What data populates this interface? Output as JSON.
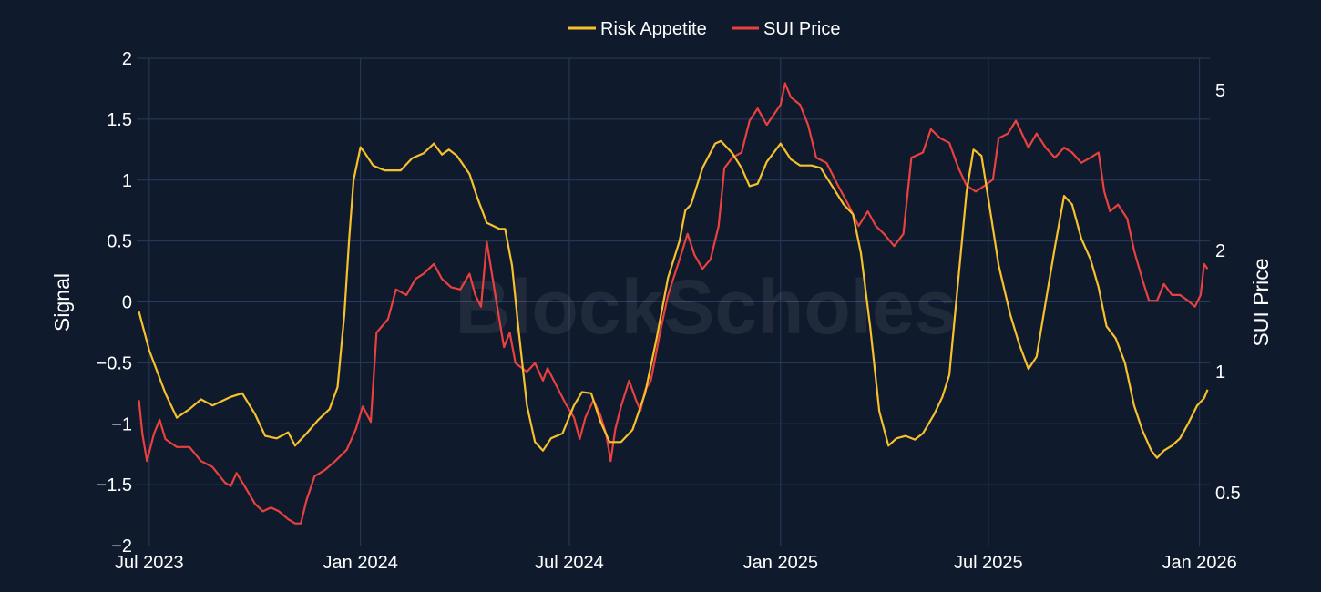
{
  "chart_data": {
    "type": "line",
    "watermark": "BlockScholes",
    "colors": {
      "background": "#0f1a2c",
      "grid": "#2a3a5c",
      "risk": "#f7c12d",
      "price": "#e8413f"
    },
    "legend_position": "top-center",
    "grid": true,
    "xaxis": {
      "range": [
        "2023-06-20",
        "2026-01-10"
      ],
      "ticks": [
        {
          "date": "2023-07-01",
          "label": "Jul 2023"
        },
        {
          "date": "2024-01-01",
          "label": "Jan 2024"
        },
        {
          "date": "2024-07-01",
          "label": "Jul 2024"
        },
        {
          "date": "2025-01-01",
          "label": "Jan 2025"
        },
        {
          "date": "2025-07-01",
          "label": "Jul 2025"
        },
        {
          "date": "2026-01-01",
          "label": "Jan 2026"
        }
      ]
    },
    "yaxis_left": {
      "title": "Signal",
      "range": [
        -2,
        2
      ],
      "ticks": [
        {
          "v": 2,
          "label": "2"
        },
        {
          "v": 1.5,
          "label": "1.5"
        },
        {
          "v": 1,
          "label": "1"
        },
        {
          "v": 0.5,
          "label": "0.5"
        },
        {
          "v": 0,
          "label": "0"
        },
        {
          "v": -0.5,
          "label": "−0.5"
        },
        {
          "v": -1,
          "label": "−1"
        },
        {
          "v": -1.5,
          "label": "−1.5"
        },
        {
          "v": -2,
          "label": "−2"
        }
      ]
    },
    "yaxis_right": {
      "title": "SUI Price",
      "scale": "log",
      "range": [
        0.37,
        6.0
      ],
      "ticks": [
        {
          "v": 5,
          "label": "5"
        },
        {
          "v": 2,
          "label": "2"
        },
        {
          "v": 1,
          "label": "1"
        },
        {
          "v": 0.5,
          "label": "0.5"
        }
      ]
    },
    "series": [
      {
        "name": "Risk Appetite",
        "axis": "left",
        "points": [
          [
            "2023-06-22",
            -0.08
          ],
          [
            "2023-07-01",
            -0.4
          ],
          [
            "2023-07-15",
            -0.75
          ],
          [
            "2023-07-25",
            -0.95
          ],
          [
            "2023-08-05",
            -0.88
          ],
          [
            "2023-08-15",
            -0.8
          ],
          [
            "2023-08-25",
            -0.85
          ],
          [
            "2023-09-10",
            -0.78
          ],
          [
            "2023-09-20",
            -0.75
          ],
          [
            "2023-10-01",
            -0.92
          ],
          [
            "2023-10-10",
            -1.1
          ],
          [
            "2023-10-20",
            -1.12
          ],
          [
            "2023-10-30",
            -1.07
          ],
          [
            "2023-11-05",
            -1.18
          ],
          [
            "2023-11-15",
            -1.08
          ],
          [
            "2023-11-25",
            -0.97
          ],
          [
            "2023-12-05",
            -0.88
          ],
          [
            "2023-12-12",
            -0.7
          ],
          [
            "2023-12-18",
            -0.1
          ],
          [
            "2023-12-22",
            0.5
          ],
          [
            "2023-12-26",
            1.0
          ],
          [
            "2024-01-01",
            1.27
          ],
          [
            "2024-01-05",
            1.22
          ],
          [
            "2024-01-12",
            1.12
          ],
          [
            "2024-01-22",
            1.08
          ],
          [
            "2024-02-05",
            1.08
          ],
          [
            "2024-02-15",
            1.18
          ],
          [
            "2024-02-25",
            1.22
          ],
          [
            "2024-03-05",
            1.3
          ],
          [
            "2024-03-12",
            1.21
          ],
          [
            "2024-03-18",
            1.25
          ],
          [
            "2024-03-25",
            1.2
          ],
          [
            "2024-04-05",
            1.05
          ],
          [
            "2024-04-12",
            0.85
          ],
          [
            "2024-04-20",
            0.65
          ],
          [
            "2024-05-01",
            0.6
          ],
          [
            "2024-05-06",
            0.6
          ],
          [
            "2024-05-12",
            0.3
          ],
          [
            "2024-05-18",
            -0.25
          ],
          [
            "2024-05-25",
            -0.85
          ],
          [
            "2024-06-01",
            -1.15
          ],
          [
            "2024-06-08",
            -1.22
          ],
          [
            "2024-06-15",
            -1.12
          ],
          [
            "2024-06-25",
            -1.08
          ],
          [
            "2024-07-05",
            -0.85
          ],
          [
            "2024-07-12",
            -0.74
          ],
          [
            "2024-07-20",
            -0.75
          ],
          [
            "2024-07-28",
            -0.98
          ],
          [
            "2024-08-05",
            -1.15
          ],
          [
            "2024-08-15",
            -1.15
          ],
          [
            "2024-08-25",
            -1.05
          ],
          [
            "2024-09-05",
            -0.75
          ],
          [
            "2024-09-15",
            -0.3
          ],
          [
            "2024-09-25",
            0.2
          ],
          [
            "2024-10-05",
            0.5
          ],
          [
            "2024-10-10",
            0.75
          ],
          [
            "2024-10-15",
            0.8
          ],
          [
            "2024-10-25",
            1.1
          ],
          [
            "2024-11-05",
            1.3
          ],
          [
            "2024-11-10",
            1.32
          ],
          [
            "2024-11-20",
            1.22
          ],
          [
            "2024-11-28",
            1.1
          ],
          [
            "2024-12-05",
            0.95
          ],
          [
            "2024-12-12",
            0.97
          ],
          [
            "2024-12-20",
            1.15
          ],
          [
            "2025-01-01",
            1.3
          ],
          [
            "2025-01-10",
            1.17
          ],
          [
            "2025-01-18",
            1.12
          ],
          [
            "2025-01-28",
            1.12
          ],
          [
            "2025-02-05",
            1.1
          ],
          [
            "2025-02-15",
            0.95
          ],
          [
            "2025-02-25",
            0.8
          ],
          [
            "2025-03-05",
            0.72
          ],
          [
            "2025-03-12",
            0.4
          ],
          [
            "2025-03-20",
            -0.2
          ],
          [
            "2025-03-28",
            -0.9
          ],
          [
            "2025-04-05",
            -1.18
          ],
          [
            "2025-04-12",
            -1.12
          ],
          [
            "2025-04-20",
            -1.1
          ],
          [
            "2025-04-28",
            -1.13
          ],
          [
            "2025-05-05",
            -1.08
          ],
          [
            "2025-05-15",
            -0.92
          ],
          [
            "2025-05-22",
            -0.78
          ],
          [
            "2025-05-28",
            -0.6
          ],
          [
            "2025-06-05",
            0.2
          ],
          [
            "2025-06-12",
            0.9
          ],
          [
            "2025-06-18",
            1.25
          ],
          [
            "2025-06-25",
            1.2
          ],
          [
            "2025-07-01",
            0.85
          ],
          [
            "2025-07-10",
            0.3
          ],
          [
            "2025-07-20",
            -0.1
          ],
          [
            "2025-07-28",
            -0.35
          ],
          [
            "2025-08-05",
            -0.55
          ],
          [
            "2025-08-12",
            -0.45
          ],
          [
            "2025-08-20",
            0.0
          ],
          [
            "2025-08-28",
            0.45
          ],
          [
            "2025-09-05",
            0.87
          ],
          [
            "2025-09-12",
            0.8
          ],
          [
            "2025-09-20",
            0.52
          ],
          [
            "2025-09-28",
            0.35
          ],
          [
            "2025-10-05",
            0.12
          ],
          [
            "2025-10-12",
            -0.2
          ],
          [
            "2025-10-20",
            -0.3
          ],
          [
            "2025-10-28",
            -0.5
          ],
          [
            "2025-11-05",
            -0.85
          ],
          [
            "2025-11-12",
            -1.05
          ],
          [
            "2025-11-20",
            -1.22
          ],
          [
            "2025-11-25",
            -1.28
          ],
          [
            "2025-12-01",
            -1.22
          ],
          [
            "2025-12-08",
            -1.18
          ],
          [
            "2025-12-15",
            -1.12
          ],
          [
            "2025-12-22",
            -1.0
          ],
          [
            "2025-12-30",
            -0.85
          ],
          [
            "2026-01-05",
            -0.79
          ],
          [
            "2026-01-08",
            -0.72
          ]
        ]
      },
      {
        "name": "SUI Price",
        "axis": "right",
        "points": [
          [
            "2023-06-22",
            0.85
          ],
          [
            "2023-06-25",
            0.7
          ],
          [
            "2023-06-29",
            0.6
          ],
          [
            "2023-07-05",
            0.7
          ],
          [
            "2023-07-10",
            0.76
          ],
          [
            "2023-07-15",
            0.68
          ],
          [
            "2023-07-25",
            0.65
          ],
          [
            "2023-08-05",
            0.65
          ],
          [
            "2023-08-15",
            0.6
          ],
          [
            "2023-08-25",
            0.58
          ],
          [
            "2023-09-05",
            0.53
          ],
          [
            "2023-09-10",
            0.52
          ],
          [
            "2023-09-15",
            0.56
          ],
          [
            "2023-09-22",
            0.52
          ],
          [
            "2023-10-01",
            0.47
          ],
          [
            "2023-10-08",
            0.45
          ],
          [
            "2023-10-15",
            0.46
          ],
          [
            "2023-10-22",
            0.45
          ],
          [
            "2023-10-30",
            0.43
          ],
          [
            "2023-11-05",
            0.42
          ],
          [
            "2023-11-10",
            0.42
          ],
          [
            "2023-11-15",
            0.48
          ],
          [
            "2023-11-22",
            0.55
          ],
          [
            "2023-12-01",
            0.57
          ],
          [
            "2023-12-10",
            0.6
          ],
          [
            "2023-12-20",
            0.64
          ],
          [
            "2023-12-28",
            0.72
          ],
          [
            "2024-01-03",
            0.82
          ],
          [
            "2024-01-10",
            0.75
          ],
          [
            "2024-01-15",
            1.25
          ],
          [
            "2024-01-25",
            1.35
          ],
          [
            "2024-02-01",
            1.6
          ],
          [
            "2024-02-10",
            1.55
          ],
          [
            "2024-02-18",
            1.7
          ],
          [
            "2024-02-25",
            1.75
          ],
          [
            "2024-03-05",
            1.85
          ],
          [
            "2024-03-12",
            1.7
          ],
          [
            "2024-03-20",
            1.62
          ],
          [
            "2024-03-28",
            1.6
          ],
          [
            "2024-04-05",
            1.75
          ],
          [
            "2024-04-10",
            1.55
          ],
          [
            "2024-04-15",
            1.45
          ],
          [
            "2024-04-20",
            2.1
          ],
          [
            "2024-04-28",
            1.52
          ],
          [
            "2024-05-05",
            1.15
          ],
          [
            "2024-05-10",
            1.25
          ],
          [
            "2024-05-15",
            1.05
          ],
          [
            "2024-05-25",
            1.0
          ],
          [
            "2024-06-01",
            1.05
          ],
          [
            "2024-06-08",
            0.95
          ],
          [
            "2024-06-12",
            1.02
          ],
          [
            "2024-06-20",
            0.92
          ],
          [
            "2024-06-28",
            0.83
          ],
          [
            "2024-07-05",
            0.77
          ],
          [
            "2024-07-10",
            0.68
          ],
          [
            "2024-07-15",
            0.77
          ],
          [
            "2024-07-22",
            0.85
          ],
          [
            "2024-07-28",
            0.78
          ],
          [
            "2024-08-02",
            0.7
          ],
          [
            "2024-08-06",
            0.6
          ],
          [
            "2024-08-10",
            0.72
          ],
          [
            "2024-08-15",
            0.82
          ],
          [
            "2024-08-22",
            0.95
          ],
          [
            "2024-08-28",
            0.85
          ],
          [
            "2024-09-01",
            0.8
          ],
          [
            "2024-09-05",
            0.9
          ],
          [
            "2024-09-10",
            0.95
          ],
          [
            "2024-09-18",
            1.25
          ],
          [
            "2024-09-25",
            1.55
          ],
          [
            "2024-10-05",
            1.9
          ],
          [
            "2024-10-12",
            2.2
          ],
          [
            "2024-10-18",
            1.95
          ],
          [
            "2024-10-25",
            1.8
          ],
          [
            "2024-11-01",
            1.9
          ],
          [
            "2024-11-08",
            2.3
          ],
          [
            "2024-11-13",
            3.2
          ],
          [
            "2024-11-20",
            3.4
          ],
          [
            "2024-11-28",
            3.5
          ],
          [
            "2024-12-05",
            4.2
          ],
          [
            "2024-12-12",
            4.5
          ],
          [
            "2024-12-20",
            4.1
          ],
          [
            "2025-01-01",
            4.6
          ],
          [
            "2025-01-05",
            5.2
          ],
          [
            "2025-01-10",
            4.8
          ],
          [
            "2025-01-18",
            4.6
          ],
          [
            "2025-01-25",
            4.1
          ],
          [
            "2025-02-01",
            3.4
          ],
          [
            "2025-02-10",
            3.3
          ],
          [
            "2025-02-20",
            2.9
          ],
          [
            "2025-03-01",
            2.6
          ],
          [
            "2025-03-10",
            2.3
          ],
          [
            "2025-03-18",
            2.5
          ],
          [
            "2025-03-25",
            2.3
          ],
          [
            "2025-04-01",
            2.2
          ],
          [
            "2025-04-10",
            2.05
          ],
          [
            "2025-04-18",
            2.2
          ],
          [
            "2025-04-25",
            3.4
          ],
          [
            "2025-05-05",
            3.5
          ],
          [
            "2025-05-12",
            4.0
          ],
          [
            "2025-05-20",
            3.8
          ],
          [
            "2025-05-28",
            3.7
          ],
          [
            "2025-06-05",
            3.2
          ],
          [
            "2025-06-12",
            2.9
          ],
          [
            "2025-06-20",
            2.8
          ],
          [
            "2025-06-28",
            2.9
          ],
          [
            "2025-07-05",
            3.0
          ],
          [
            "2025-07-10",
            3.8
          ],
          [
            "2025-07-18",
            3.9
          ],
          [
            "2025-07-25",
            4.2
          ],
          [
            "2025-08-05",
            3.6
          ],
          [
            "2025-08-12",
            3.9
          ],
          [
            "2025-08-20",
            3.6
          ],
          [
            "2025-08-28",
            3.4
          ],
          [
            "2025-09-05",
            3.6
          ],
          [
            "2025-09-12",
            3.5
          ],
          [
            "2025-09-20",
            3.3
          ],
          [
            "2025-09-28",
            3.4
          ],
          [
            "2025-10-05",
            3.5
          ],
          [
            "2025-10-10",
            2.8
          ],
          [
            "2025-10-15",
            2.5
          ],
          [
            "2025-10-22",
            2.6
          ],
          [
            "2025-10-30",
            2.4
          ],
          [
            "2025-11-05",
            2.0
          ],
          [
            "2025-11-12",
            1.7
          ],
          [
            "2025-11-18",
            1.5
          ],
          [
            "2025-11-25",
            1.5
          ],
          [
            "2025-12-01",
            1.65
          ],
          [
            "2025-12-08",
            1.55
          ],
          [
            "2025-12-15",
            1.55
          ],
          [
            "2025-12-22",
            1.5
          ],
          [
            "2025-12-28",
            1.45
          ],
          [
            "2026-01-02",
            1.55
          ],
          [
            "2026-01-05",
            1.85
          ],
          [
            "2026-01-08",
            1.8
          ]
        ]
      }
    ]
  }
}
